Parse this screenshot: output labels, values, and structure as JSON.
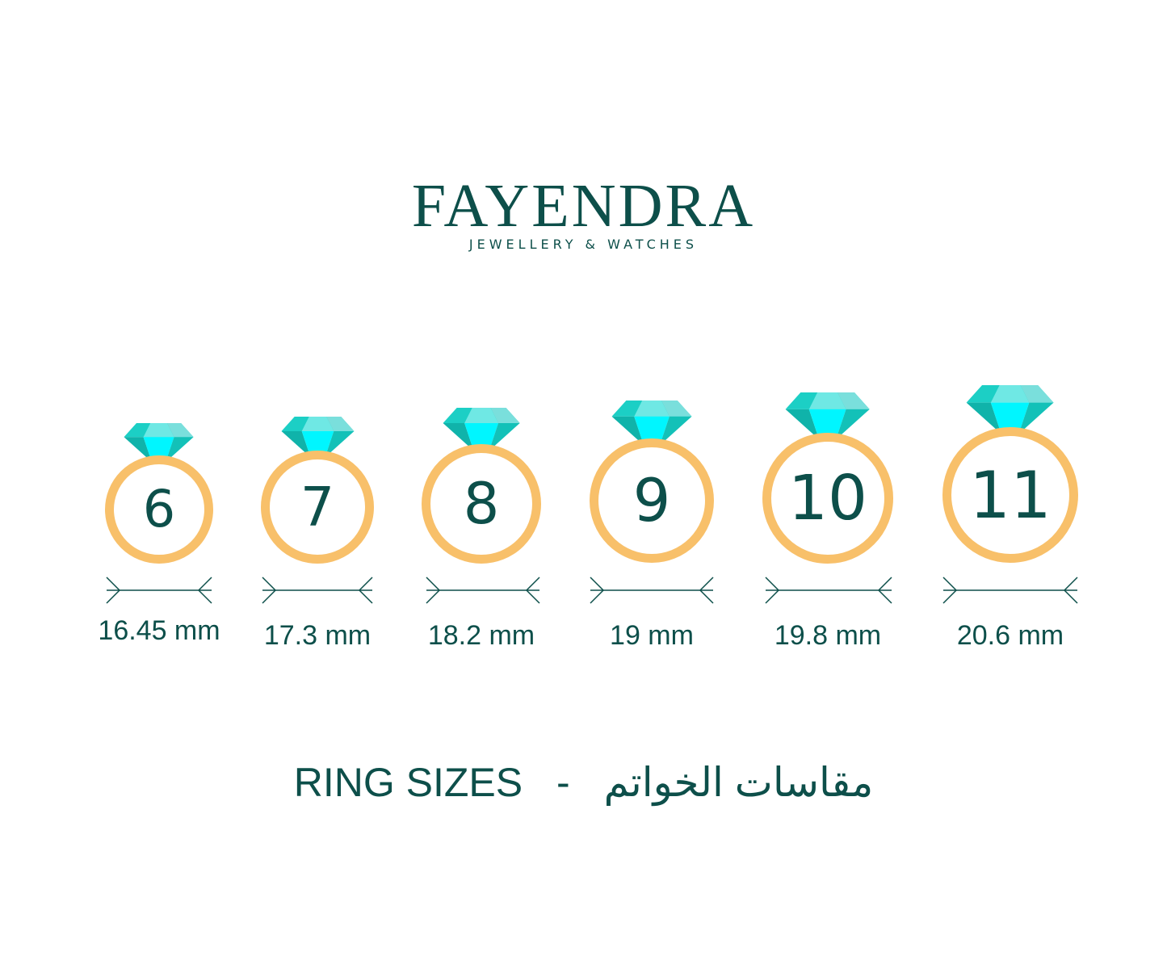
{
  "brand": {
    "name": "FAYENDRA",
    "tagline": "JEWELLERY & WATCHES"
  },
  "colors": {
    "ring": "#f8c06a",
    "text": "#0d4f4a",
    "gem": "#1ccfc5"
  },
  "rings": [
    {
      "size": "6",
      "diameter": "16.45 mm"
    },
    {
      "size": "7",
      "diameter": "17.3 mm"
    },
    {
      "size": "8",
      "diameter": "18.2 mm"
    },
    {
      "size": "9",
      "diameter": "19 mm"
    },
    {
      "size": "10",
      "diameter": "19.8 mm"
    },
    {
      "size": "11",
      "diameter": "20.6 mm"
    }
  ],
  "footer": {
    "title_en": "RING SIZES",
    "separator": "-",
    "title_ar": "مقاسات الخواتم"
  }
}
